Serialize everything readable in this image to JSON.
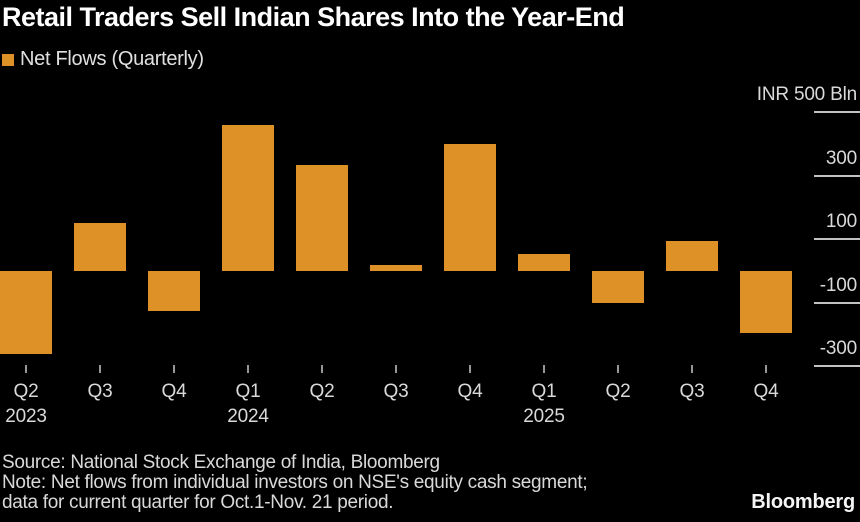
{
  "header": {
    "title": "Retail Traders Sell Indian Shares Into the Year-End"
  },
  "legend": {
    "label": "Net Flows (Quarterly)",
    "swatch_color": "#DD9126"
  },
  "chart_data": {
    "type": "bar",
    "title": "Retail Traders Sell Indian Shares Into the Year-End",
    "unit": "INR Bln",
    "categories": [
      "Q2 2023",
      "Q3 2023",
      "Q4 2023",
      "Q1 2024",
      "Q2 2024",
      "Q3 2024",
      "Q4 2024",
      "Q1 2025",
      "Q2 2025",
      "Q3 2025",
      "Q4 2025"
    ],
    "values": [
      -260,
      150,
      -125,
      460,
      335,
      20,
      400,
      55,
      -100,
      95,
      -195
    ],
    "x_tick_labels": [
      "Q2",
      "Q3",
      "Q4",
      "Q1",
      "Q2",
      "Q3",
      "Q4",
      "Q1",
      "Q2",
      "Q3",
      "Q4"
    ],
    "year_labels": [
      {
        "index": 0,
        "label": "2023"
      },
      {
        "index": 3,
        "label": "2024"
      },
      {
        "index": 7,
        "label": "2025"
      }
    ],
    "y_axis_ticks": [
      {
        "value": 500,
        "label": "INR 500 Bln"
      },
      {
        "value": 300,
        "label": "300"
      },
      {
        "value": 100,
        "label": "100"
      },
      {
        "value": -100,
        "label": "-100"
      },
      {
        "value": -300,
        "label": "-300"
      }
    ],
    "ylim": [
      -400,
      500
    ],
    "bar_color": "#DD9126",
    "grid": "right-edge tick segments only",
    "legend_position": "top-left",
    "y_axis_side": "right"
  },
  "footer": {
    "source_line": "Source: National Stock Exchange of India, Bloomberg",
    "note_line1": "Note: Net flows from individual investors on NSE's equity cash segment;",
    "note_line2": "data for current quarter for Oct.1-Nov. 21 period.",
    "brand": "Bloomberg"
  },
  "colors": {
    "background": "#000000",
    "bar": "#DD9126",
    "title_text": "#FFFFFF",
    "axis_text": "#D9D9D9",
    "tick_line": "#C2C2C2",
    "x_tick_mark": "#969696",
    "footer_text": "#D9D9D9",
    "brand_text": "#F5F5F5"
  }
}
